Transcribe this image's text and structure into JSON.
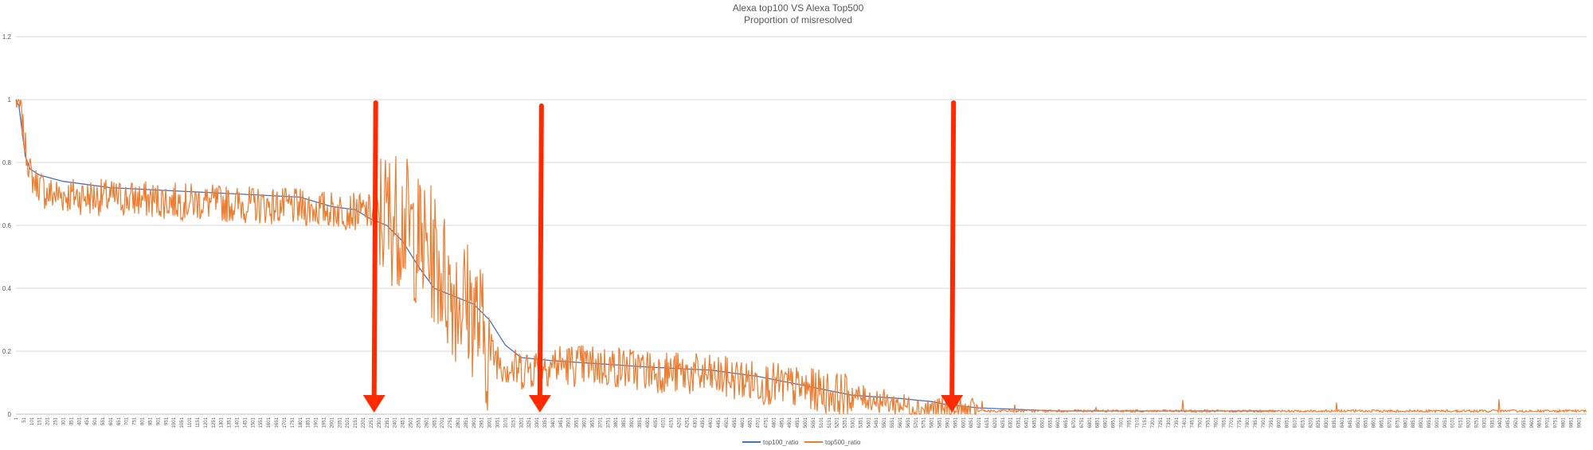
{
  "chart_data": {
    "type": "line",
    "title": "Alexa top100 VS Alexa Top500",
    "subtitle": "Proportion of misresolved",
    "xlabel": "",
    "ylabel": "",
    "x_range": [
      1,
      9950
    ],
    "ylim": [
      0,
      1.2
    ],
    "y_ticks": [
      "0",
      "0.2",
      "0.4",
      "0.6",
      "0.8",
      "1",
      "1.2"
    ],
    "x_tick_start": 1,
    "x_tick_step": 50,
    "x_tick_count": 199,
    "grid": true,
    "legend_position": "bottom",
    "series": [
      {
        "name": "top100_ratio",
        "color": "#4472C4",
        "points": [
          [
            1,
            1.0
          ],
          [
            20,
            0.98
          ],
          [
            40,
            0.9
          ],
          [
            60,
            0.82
          ],
          [
            90,
            0.78
          ],
          [
            150,
            0.76
          ],
          [
            300,
            0.74
          ],
          [
            600,
            0.72
          ],
          [
            1000,
            0.71
          ],
          [
            1400,
            0.7
          ],
          [
            1800,
            0.69
          ],
          [
            2000,
            0.66
          ],
          [
            2150,
            0.65
          ],
          [
            2250,
            0.62
          ],
          [
            2350,
            0.6
          ],
          [
            2450,
            0.55
          ],
          [
            2550,
            0.47
          ],
          [
            2650,
            0.4
          ],
          [
            2800,
            0.37
          ],
          [
            2900,
            0.35
          ],
          [
            3000,
            0.3
          ],
          [
            3100,
            0.22
          ],
          [
            3200,
            0.18
          ],
          [
            3400,
            0.17
          ],
          [
            3700,
            0.16
          ],
          [
            4000,
            0.15
          ],
          [
            4400,
            0.14
          ],
          [
            4700,
            0.12
          ],
          [
            5000,
            0.09
          ],
          [
            5300,
            0.06
          ],
          [
            5600,
            0.05
          ],
          [
            5800,
            0.04
          ],
          [
            5900,
            0.03
          ],
          [
            6100,
            0.02
          ],
          [
            6600,
            0.01
          ],
          [
            8000,
            0.01
          ]
        ]
      },
      {
        "name": "top500_ratio",
        "color": "#ED7D31",
        "points": [
          [
            1,
            1.0
          ],
          [
            30,
            0.97
          ],
          [
            60,
            0.85
          ],
          [
            100,
            0.75
          ],
          [
            200,
            0.7
          ],
          [
            500,
            0.69
          ],
          [
            900,
            0.68
          ],
          [
            1300,
            0.67
          ],
          [
            1700,
            0.66
          ],
          [
            2000,
            0.65
          ],
          [
            2250,
            0.64
          ],
          [
            2350,
            0.63
          ],
          [
            2450,
            0.62
          ],
          [
            2550,
            0.55
          ],
          [
            2650,
            0.5
          ],
          [
            2750,
            0.4
          ],
          [
            2900,
            0.33
          ],
          [
            3000,
            0.2
          ],
          [
            3150,
            0.14
          ],
          [
            3400,
            0.16
          ],
          [
            3800,
            0.15
          ],
          [
            4200,
            0.13
          ],
          [
            4600,
            0.11
          ],
          [
            5000,
            0.08
          ],
          [
            5400,
            0.05
          ],
          [
            5700,
            0.02
          ],
          [
            6000,
            0.01
          ],
          [
            6300,
            0.01
          ],
          [
            9950,
            0.01
          ]
        ]
      }
    ],
    "annotations": [
      {
        "type": "arrow",
        "x": 2280,
        "y_from": 0.99,
        "y_to": 0.0,
        "color": "#FF2A00"
      },
      {
        "type": "arrow",
        "x": 3330,
        "y_from": 0.98,
        "y_to": 0.0,
        "color": "#FF2A00"
      },
      {
        "type": "arrow",
        "x": 5940,
        "y_from": 0.99,
        "y_to": 0.0,
        "color": "#FF2A00"
      }
    ]
  }
}
